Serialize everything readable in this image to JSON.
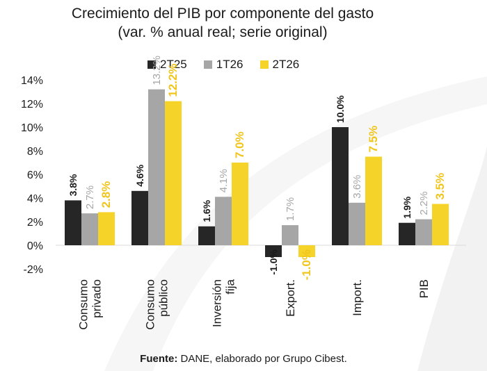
{
  "title_line1": "Crecimiento del PIB por componente del gasto",
  "title_line2": "(var. % anual real; serie original)",
  "source_prefix": "Fuente:",
  "source_text": " DANE, elaborado por Grupo Cibest.",
  "colors": {
    "s1": "#262626",
    "s2": "#a6a6a6",
    "s3": "#f5d328",
    "label2": "#a6a6a6",
    "label3": "#f0c51c"
  },
  "chart_data": {
    "type": "bar",
    "categories": [
      [
        "Consumo",
        "privado"
      ],
      [
        "Consumo",
        "público"
      ],
      [
        "Inversión",
        "fija"
      ],
      [
        "Export."
      ],
      [
        "Import."
      ],
      [
        "PIB"
      ]
    ],
    "series": [
      {
        "name": "2T25",
        "values": [
          3.8,
          4.6,
          1.6,
          -1.0,
          10.0,
          1.9
        ],
        "labels": [
          "3.8%",
          "4.6%",
          "1.6%",
          "-1.0%",
          "10.0%",
          "1.9%"
        ]
      },
      {
        "name": "1T26",
        "values": [
          2.7,
          13.2,
          4.1,
          1.7,
          3.6,
          2.2
        ],
        "labels": [
          "2.7%",
          "13.2%",
          "4.1%",
          "1.7%",
          "3.6%",
          "2.2%"
        ]
      },
      {
        "name": "2T26",
        "values": [
          2.8,
          12.2,
          7.0,
          -1.0,
          7.5,
          3.5
        ],
        "labels": [
          "2.8%",
          "12.2%",
          "7.0%",
          "-1.0%",
          "7.5%",
          "3.5%"
        ]
      }
    ],
    "ylim": [
      -2,
      14
    ],
    "yticks": [
      "-2%",
      "0%",
      "2%",
      "4%",
      "6%",
      "8%",
      "10%",
      "12%",
      "14%"
    ],
    "ytick_values": [
      -2,
      0,
      2,
      4,
      6,
      8,
      10,
      12,
      14
    ],
    "grid": false,
    "legend": "top"
  }
}
